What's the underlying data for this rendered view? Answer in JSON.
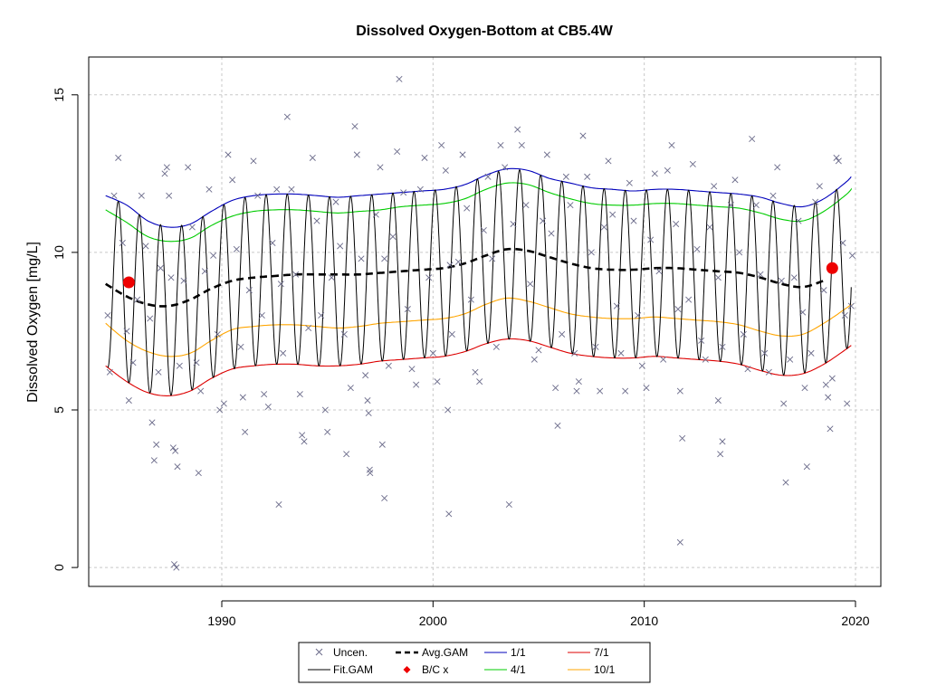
{
  "chart_data": {
    "type": "line",
    "title": "Dissolved Oxygen-Bottom at CB5.4W",
    "xlabel": "",
    "ylabel": "Dissolved Oxygen [mg/L]",
    "xlim": [
      1983.7,
      2021.2
    ],
    "ylim": [
      -0.6,
      16.2
    ],
    "x_ticks": [
      1990,
      2000,
      2010,
      2020
    ],
    "y_ticks": [
      0,
      5,
      10,
      15
    ],
    "x_tick_labels": [
      "1990",
      "2000",
      "2010",
      "2020"
    ],
    "y_tick_labels": [
      "0",
      "5",
      "10",
      "15"
    ],
    "grid": true,
    "legend_position": "bottom",
    "legend": {
      "uncen": "Uncen.",
      "fit": "Fit.GAM",
      "avg": "Avg.GAM",
      "bc": "B/C x",
      "p11": "1/1",
      "p41": "4/1",
      "p71": "7/1",
      "p101": "10/1"
    },
    "colors": {
      "points": "#6b6b8a",
      "fit": "#000000",
      "avg": "#000000",
      "bc": "#ee0000",
      "p11": "#0000bb",
      "p41": "#00cc00",
      "p71": "#dd0000",
      "p101": "#ffa500",
      "grid": "#c8c8c8"
    },
    "series": [
      {
        "name": "Avg.GAM",
        "style": "dashed",
        "x": [
          1984.5,
          1985.5,
          1986.5,
          1987.5,
          1988.5,
          1989.5,
          1990.5,
          1991.5,
          1992.5,
          1993.5,
          1994.5,
          1995.5,
          1996.5,
          1997.5,
          1998.5,
          1999.5,
          2000.5,
          2001.5,
          2002.5,
          2003.5,
          2004.5,
          2005.5,
          2006.5,
          2007.5,
          2008.5,
          2009.5,
          2010.5,
          2011.5,
          2012.5,
          2013.5,
          2014.5,
          2015.5,
          2016.5,
          2017.5,
          2018.5
        ],
        "y": [
          9.0,
          8.6,
          8.35,
          8.3,
          8.5,
          8.85,
          9.1,
          9.2,
          9.25,
          9.3,
          9.3,
          9.3,
          9.3,
          9.35,
          9.4,
          9.45,
          9.5,
          9.65,
          9.9,
          10.1,
          10.05,
          9.85,
          9.65,
          9.5,
          9.45,
          9.45,
          9.5,
          9.5,
          9.45,
          9.4,
          9.35,
          9.2,
          9.0,
          8.9,
          9.1
        ]
      },
      {
        "name": "1/1",
        "x": [
          1984.5,
          1985.5,
          1986.5,
          1987.5,
          1988.5,
          1989.5,
          1990.5,
          1991.5,
          1992.5,
          1993.5,
          1994.5,
          1995.5,
          1996.5,
          1997.5,
          1998.5,
          1999.5,
          2000.5,
          2001.5,
          2002.5,
          2003.5,
          2004.5,
          2005.5,
          2006.5,
          2007.5,
          2008.5,
          2009.5,
          2010.5,
          2011.5,
          2012.5,
          2013.5,
          2014.5,
          2015.5,
          2016.5,
          2017.5,
          2018.5,
          2019.5,
          2019.8
        ],
        "y": [
          11.8,
          11.5,
          11.0,
          10.8,
          10.9,
          11.3,
          11.65,
          11.8,
          11.85,
          11.85,
          11.8,
          11.75,
          11.8,
          11.85,
          11.9,
          11.95,
          12.0,
          12.15,
          12.45,
          12.65,
          12.6,
          12.35,
          12.2,
          12.05,
          12.0,
          11.95,
          12.0,
          12.0,
          11.95,
          11.9,
          11.85,
          11.75,
          11.55,
          11.45,
          11.7,
          12.2,
          12.4
        ]
      },
      {
        "name": "4/1",
        "x": [
          1984.5,
          1985.5,
          1986.5,
          1987.5,
          1988.5,
          1989.5,
          1990.5,
          1991.5,
          1992.5,
          1993.5,
          1994.5,
          1995.5,
          1996.5,
          1997.5,
          1998.5,
          1999.5,
          2000.5,
          2001.5,
          2002.5,
          2003.5,
          2004.5,
          2005.5,
          2006.5,
          2007.5,
          2008.5,
          2009.5,
          2010.5,
          2011.5,
          2012.5,
          2013.5,
          2014.5,
          2015.5,
          2016.5,
          2017.5,
          2018.5,
          2019.5,
          2019.8
        ],
        "y": [
          11.35,
          10.95,
          10.5,
          10.35,
          10.45,
          10.85,
          11.15,
          11.3,
          11.35,
          11.35,
          11.3,
          11.25,
          11.3,
          11.35,
          11.45,
          11.5,
          11.55,
          11.7,
          12.0,
          12.2,
          12.15,
          11.9,
          11.7,
          11.55,
          11.5,
          11.5,
          11.55,
          11.55,
          11.5,
          11.45,
          11.4,
          11.25,
          11.05,
          11.0,
          11.3,
          11.8,
          12.0
        ]
      },
      {
        "name": "7/1",
        "x": [
          1984.5,
          1985.5,
          1986.5,
          1987.5,
          1988.5,
          1989.5,
          1990.5,
          1991.5,
          1992.5,
          1993.5,
          1994.5,
          1995.5,
          1996.5,
          1997.5,
          1998.5,
          1999.5,
          2000.5,
          2001.5,
          2002.5,
          2003.5,
          2004.5,
          2005.5,
          2006.5,
          2007.5,
          2008.5,
          2009.5,
          2010.5,
          2011.5,
          2012.5,
          2013.5,
          2014.5,
          2015.5,
          2016.5,
          2017.5,
          2018.5,
          2019.5,
          2019.8
        ],
        "y": [
          6.4,
          5.9,
          5.55,
          5.45,
          5.6,
          6.0,
          6.3,
          6.4,
          6.45,
          6.45,
          6.4,
          6.4,
          6.45,
          6.55,
          6.6,
          6.65,
          6.7,
          6.85,
          7.1,
          7.25,
          7.2,
          7.0,
          6.8,
          6.7,
          6.65,
          6.65,
          6.7,
          6.65,
          6.6,
          6.55,
          6.45,
          6.25,
          6.1,
          6.15,
          6.45,
          6.9,
          7.05
        ]
      },
      {
        "name": "10/1",
        "x": [
          1984.5,
          1985.5,
          1986.5,
          1987.5,
          1988.5,
          1989.5,
          1990.5,
          1991.5,
          1992.5,
          1993.5,
          1994.5,
          1995.5,
          1996.5,
          1997.5,
          1998.5,
          1999.5,
          2000.5,
          2001.5,
          2002.5,
          2003.5,
          2004.5,
          2005.5,
          2006.5,
          2007.5,
          2008.5,
          2009.5,
          2010.5,
          2011.5,
          2012.5,
          2013.5,
          2014.5,
          2015.5,
          2016.5,
          2017.5,
          2018.5,
          2019.5,
          2019.8
        ],
        "y": [
          7.75,
          7.2,
          6.85,
          6.7,
          6.8,
          7.2,
          7.55,
          7.65,
          7.7,
          7.7,
          7.65,
          7.6,
          7.65,
          7.75,
          7.8,
          7.85,
          7.9,
          8.05,
          8.35,
          8.55,
          8.45,
          8.25,
          8.05,
          7.95,
          7.9,
          7.9,
          7.95,
          7.9,
          7.85,
          7.8,
          7.7,
          7.5,
          7.35,
          7.4,
          7.75,
          8.2,
          8.35
        ]
      }
    ],
    "fit_gam": {
      "x_start": 1984.6,
      "x_end": 2019.8,
      "cycles_per_year": 1,
      "peak_fraction_of_year": 0.1,
      "trough_fraction_of_year": 0.6
    },
    "bc_points": [
      {
        "x": 1985.6,
        "y": 9.05
      },
      {
        "x": 2018.9,
        "y": 9.5
      }
    ],
    "uncen_points": [
      [
        1984.6,
        8.0
      ],
      [
        1984.7,
        6.2
      ],
      [
        1984.9,
        11.8
      ],
      [
        1985.1,
        13.0
      ],
      [
        1985.3,
        10.3
      ],
      [
        1985.5,
        7.5
      ],
      [
        1985.6,
        5.3
      ],
      [
        1985.8,
        6.5
      ],
      [
        1986.0,
        8.5
      ],
      [
        1986.2,
        11.8
      ],
      [
        1986.4,
        10.2
      ],
      [
        1986.6,
        7.9
      ],
      [
        1986.7,
        4.6
      ],
      [
        1986.8,
        3.4
      ],
      [
        1986.9,
        3.9
      ],
      [
        1987.0,
        6.2
      ],
      [
        1987.1,
        9.5
      ],
      [
        1987.3,
        12.5
      ],
      [
        1987.4,
        12.7
      ],
      [
        1987.5,
        11.8
      ],
      [
        1987.6,
        9.2
      ],
      [
        1987.7,
        3.8
      ],
      [
        1987.8,
        3.7
      ],
      [
        1987.9,
        3.2
      ],
      [
        1987.75,
        0.1
      ],
      [
        1987.85,
        0.0
      ],
      [
        1988.0,
        6.4
      ],
      [
        1988.2,
        9.1
      ],
      [
        1988.4,
        12.7
      ],
      [
        1988.6,
        10.8
      ],
      [
        1988.8,
        6.5
      ],
      [
        1988.9,
        3.0
      ],
      [
        1989.0,
        5.6
      ],
      [
        1989.2,
        9.4
      ],
      [
        1989.4,
        12.0
      ],
      [
        1989.6,
        9.9
      ],
      [
        1989.8,
        7.4
      ],
      [
        1989.9,
        5.0
      ],
      [
        1990.1,
        5.2
      ],
      [
        1990.3,
        13.1
      ],
      [
        1990.5,
        12.3
      ],
      [
        1990.7,
        10.1
      ],
      [
        1990.9,
        7.0
      ],
      [
        1991.0,
        5.4
      ],
      [
        1991.1,
        4.3
      ],
      [
        1991.3,
        8.8
      ],
      [
        1991.5,
        12.9
      ],
      [
        1991.7,
        11.8
      ],
      [
        1991.9,
        8.0
      ],
      [
        1992.0,
        5.5
      ],
      [
        1992.2,
        5.1
      ],
      [
        1992.4,
        10.3
      ],
      [
        1992.6,
        12.0
      ],
      [
        1992.8,
        9.0
      ],
      [
        1992.9,
        6.8
      ],
      [
        1992.7,
        2.0
      ],
      [
        1993.1,
        14.3
      ],
      [
        1993.3,
        12.0
      ],
      [
        1993.5,
        9.3
      ],
      [
        1993.7,
        5.5
      ],
      [
        1993.8,
        4.2
      ],
      [
        1993.9,
        4.0
      ],
      [
        1994.1,
        7.6
      ],
      [
        1994.3,
        13.0
      ],
      [
        1994.5,
        11.0
      ],
      [
        1994.7,
        8.0
      ],
      [
        1994.9,
        5.0
      ],
      [
        1995.0,
        4.3
      ],
      [
        1995.2,
        9.2
      ],
      [
        1995.4,
        11.6
      ],
      [
        1995.6,
        10.2
      ],
      [
        1995.8,
        7.4
      ],
      [
        1995.9,
        3.6
      ],
      [
        1996.1,
        5.7
      ],
      [
        1996.3,
        14.0
      ],
      [
        1996.4,
        13.1
      ],
      [
        1996.6,
        9.8
      ],
      [
        1996.8,
        6.1
      ],
      [
        1996.9,
        5.3
      ],
      [
        1996.95,
        4.9
      ],
      [
        1997.0,
        3.1
      ],
      [
        1997.02,
        3.0
      ],
      [
        1997.3,
        11.2
      ],
      [
        1997.5,
        12.7
      ],
      [
        1997.7,
        9.8
      ],
      [
        1997.9,
        6.4
      ],
      [
        1997.6,
        3.9
      ],
      [
        1997.7,
        2.2
      ],
      [
        1998.1,
        10.5
      ],
      [
        1998.3,
        13.2
      ],
      [
        1998.4,
        15.5
      ],
      [
        1998.6,
        11.9
      ],
      [
        1998.8,
        8.2
      ],
      [
        1999.0,
        6.3
      ],
      [
        1999.2,
        5.8
      ],
      [
        1999.4,
        12.0
      ],
      [
        1999.6,
        13.0
      ],
      [
        1999.8,
        9.2
      ],
      [
        2000.0,
        6.8
      ],
      [
        2000.2,
        5.9
      ],
      [
        2000.4,
        13.4
      ],
      [
        2000.6,
        12.6
      ],
      [
        2000.8,
        9.6
      ],
      [
        2000.9,
        7.4
      ],
      [
        2000.7,
        5.0
      ],
      [
        2000.75,
        1.7
      ],
      [
        2001.2,
        9.7
      ],
      [
        2001.4,
        13.1
      ],
      [
        2001.6,
        11.4
      ],
      [
        2001.8,
        8.5
      ],
      [
        2002.0,
        6.2
      ],
      [
        2002.2,
        5.9
      ],
      [
        2002.4,
        10.7
      ],
      [
        2002.6,
        12.4
      ],
      [
        2002.8,
        9.8
      ],
      [
        2003.0,
        7.0
      ],
      [
        2003.2,
        13.4
      ],
      [
        2003.4,
        12.7
      ],
      [
        2003.6,
        2.0
      ],
      [
        2003.8,
        10.9
      ],
      [
        2004.0,
        13.9
      ],
      [
        2004.2,
        13.4
      ],
      [
        2004.4,
        11.5
      ],
      [
        2004.6,
        9.0
      ],
      [
        2004.8,
        6.6
      ],
      [
        2005.0,
        6.9
      ],
      [
        2005.2,
        11.0
      ],
      [
        2005.4,
        13.1
      ],
      [
        2005.6,
        10.6
      ],
      [
        2005.8,
        5.7
      ],
      [
        2005.9,
        4.5
      ],
      [
        2006.1,
        7.4
      ],
      [
        2006.3,
        12.4
      ],
      [
        2006.5,
        11.5
      ],
      [
        2006.7,
        6.8
      ],
      [
        2006.8,
        5.6
      ],
      [
        2006.9,
        5.9
      ],
      [
        2007.1,
        13.7
      ],
      [
        2007.3,
        12.4
      ],
      [
        2007.5,
        10.0
      ],
      [
        2007.7,
        7.0
      ],
      [
        2007.9,
        5.6
      ],
      [
        2008.1,
        10.8
      ],
      [
        2008.3,
        12.9
      ],
      [
        2008.5,
        11.2
      ],
      [
        2008.7,
        8.3
      ],
      [
        2008.9,
        6.8
      ],
      [
        2009.1,
        5.6
      ],
      [
        2009.3,
        12.2
      ],
      [
        2009.5,
        11.0
      ],
      [
        2009.7,
        8.0
      ],
      [
        2009.9,
        6.4
      ],
      [
        2010.1,
        5.7
      ],
      [
        2010.3,
        10.4
      ],
      [
        2010.5,
        12.5
      ],
      [
        2010.7,
        9.4
      ],
      [
        2010.9,
        6.6
      ],
      [
        2011.1,
        12.6
      ],
      [
        2011.3,
        13.4
      ],
      [
        2011.5,
        10.9
      ],
      [
        2011.6,
        8.2
      ],
      [
        2011.7,
        5.6
      ],
      [
        2011.8,
        4.1
      ],
      [
        2011.7,
        0.8
      ],
      [
        2012.1,
        8.5
      ],
      [
        2012.3,
        12.8
      ],
      [
        2012.5,
        10.1
      ],
      [
        2012.7,
        7.2
      ],
      [
        2012.9,
        6.6
      ],
      [
        2013.1,
        10.8
      ],
      [
        2013.3,
        12.1
      ],
      [
        2013.5,
        9.2
      ],
      [
        2013.7,
        7.0
      ],
      [
        2013.6,
        3.6
      ],
      [
        2013.7,
        4.0
      ],
      [
        2013.5,
        5.3
      ],
      [
        2014.1,
        11.5
      ],
      [
        2014.3,
        12.3
      ],
      [
        2014.5,
        10.0
      ],
      [
        2014.7,
        7.4
      ],
      [
        2014.9,
        6.3
      ],
      [
        2015.1,
        13.6
      ],
      [
        2015.3,
        11.5
      ],
      [
        2015.5,
        9.3
      ],
      [
        2015.7,
        6.8
      ],
      [
        2015.9,
        6.2
      ],
      [
        2016.1,
        11.8
      ],
      [
        2016.3,
        12.7
      ],
      [
        2016.5,
        9.1
      ],
      [
        2016.6,
        5.2
      ],
      [
        2016.7,
        2.7
      ],
      [
        2016.9,
        6.6
      ],
      [
        2017.1,
        9.2
      ],
      [
        2017.3,
        11.0
      ],
      [
        2017.5,
        8.1
      ],
      [
        2017.6,
        5.7
      ],
      [
        2017.7,
        3.2
      ],
      [
        2017.9,
        6.8
      ],
      [
        2018.1,
        11.6
      ],
      [
        2018.3,
        12.1
      ],
      [
        2018.5,
        8.8
      ],
      [
        2018.6,
        5.8
      ],
      [
        2018.7,
        5.4
      ],
      [
        2018.8,
        4.4
      ],
      [
        2018.9,
        6.0
      ],
      [
        2019.1,
        13.0
      ],
      [
        2019.2,
        12.9
      ],
      [
        2019.4,
        10.3
      ],
      [
        2019.5,
        8.0
      ],
      [
        2019.6,
        5.2
      ],
      [
        2019.8,
        8.3
      ],
      [
        2019.85,
        9.9
      ]
    ]
  }
}
